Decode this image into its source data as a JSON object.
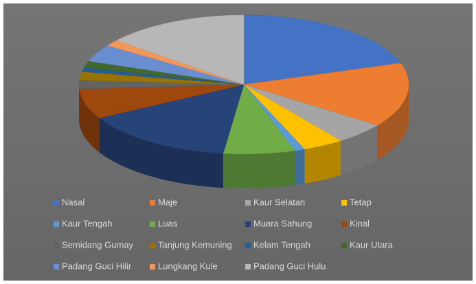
{
  "chart_data": {
    "type": "pie",
    "categories": [
      "Nasal",
      "Maje",
      "Kaur Selatan",
      "Tetap",
      "Kaur Tengah",
      "Luas",
      "Muara Sahung",
      "Kinal",
      "Semidang Gumay",
      "Tanjung Kemuning",
      "Kelam Tengah",
      "Kaur Utara",
      "Padang Guci Hilir",
      "Lungkang Kule",
      "Padang Guci Hulu"
    ],
    "values": [
      20,
      15,
      5,
      4,
      1,
      7,
      15,
      7,
      2,
      2,
      1,
      1.5,
      4,
      1.5,
      14
    ],
    "colors": [
      "#4472c4",
      "#ed7d31",
      "#a5a5a5",
      "#ffc000",
      "#5b9bd5",
      "#70ad47",
      "#264478",
      "#9e480e",
      "#636363",
      "#997300",
      "#255e91",
      "#43682b",
      "#698ed0",
      "#f1975a",
      "#b7b7b7"
    ],
    "legend": "bottom"
  }
}
